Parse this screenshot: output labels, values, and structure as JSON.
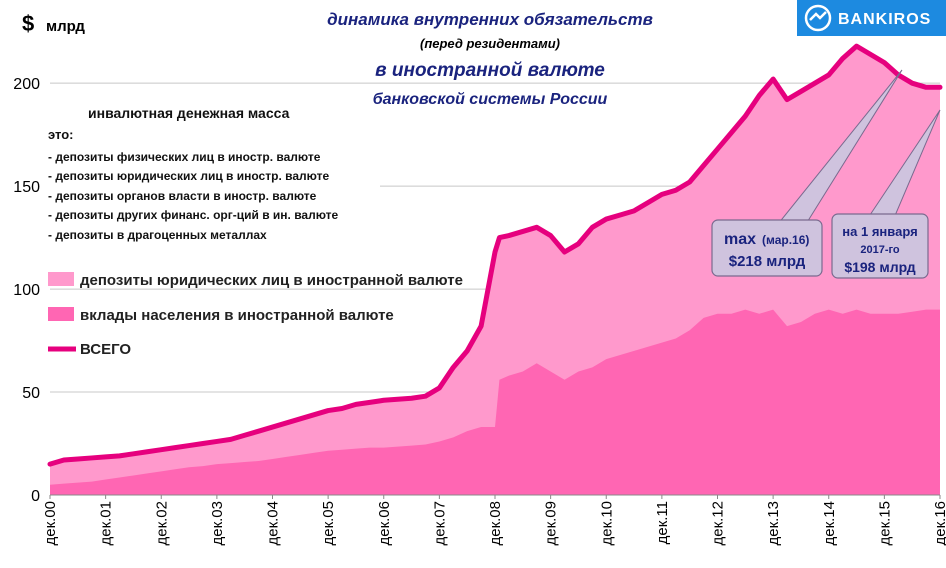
{
  "chart_data": {
    "type": "area",
    "title_lines": [
      "динамика  внутренних обязательств",
      "(перед резидентами)",
      "в иностранной валюте",
      "банковской системы России"
    ],
    "unit_label": "млрд",
    "currency_symbol": "$",
    "note_header": "инвалютная денежная масса",
    "note_intro": "это:",
    "note_items": [
      "- депозиты физических лиц в иностр. валюте",
      "- депозиты юридических лиц в иностр. валюте",
      "- депозиты органов власти в иностр. валюте",
      "- депозиты других финанс. орг-ций в ин. валюте",
      "- депозиты в драгоценных металлах"
    ],
    "x_ticks": [
      "дек.00",
      "дек.01",
      "дек.02",
      "дек.03",
      "дек.04",
      "дек.05",
      "дек.06",
      "дек.07",
      "дек.08",
      "дек.09",
      "дек.10",
      "дек.11",
      "дек.12",
      "дек.13",
      "дек.14",
      "дек.15",
      "дек.16"
    ],
    "ylim": [
      0,
      220
    ],
    "y_ticks": [
      0,
      50,
      100,
      150,
      200
    ],
    "grid": true,
    "legend_placement": "left",
    "x_dec_years": [
      2000,
      2000.25,
      2000.5,
      2000.75,
      2001,
      2001.25,
      2001.5,
      2001.75,
      2002,
      2002.25,
      2002.5,
      2002.75,
      2003,
      2003.25,
      2003.5,
      2003.75,
      2004,
      2004.25,
      2004.5,
      2004.75,
      2005,
      2005.25,
      2005.5,
      2005.75,
      2006,
      2006.25,
      2006.5,
      2006.75,
      2007,
      2007.25,
      2007.5,
      2007.75,
      2008,
      2008.08,
      2008.25,
      2008.5,
      2008.75,
      2009,
      2009.25,
      2009.5,
      2009.75,
      2010,
      2010.25,
      2010.5,
      2010.75,
      2011,
      2011.25,
      2011.5,
      2011.75,
      2012,
      2012.25,
      2012.5,
      2012.75,
      2013,
      2013.25,
      2013.5,
      2013.75,
      2014,
      2014.25,
      2014.5,
      2014.75,
      2015,
      2015.25,
      2015.5,
      2015.75,
      2016
    ],
    "series": [
      {
        "name": "вклады населения в иностранной валюте",
        "color": "#ff66b3",
        "values": [
          5,
          5.5,
          6,
          6.5,
          7.5,
          8.5,
          9.5,
          10.5,
          11.5,
          12.5,
          13.5,
          14,
          15,
          15.5,
          16,
          16.5,
          17.5,
          18.5,
          19.5,
          20.5,
          21.5,
          22,
          22.5,
          23,
          23,
          23.5,
          24,
          24.5,
          26,
          28,
          31,
          33,
          33,
          56,
          58,
          60,
          64,
          60,
          56,
          60,
          62,
          66,
          68,
          70,
          72,
          74,
          76,
          80,
          86,
          88,
          88,
          90,
          88,
          90,
          82,
          84,
          88,
          90,
          88,
          90,
          88,
          88,
          88,
          89,
          90,
          90
        ]
      },
      {
        "name": "депозиты юридических лиц в иностранной валюте",
        "color": "#ff99cc",
        "values": [
          15,
          17,
          17.5,
          18,
          18.5,
          19,
          20,
          21,
          22,
          23,
          24,
          25,
          26,
          27,
          29,
          31,
          33,
          35,
          37,
          39,
          41,
          42,
          44,
          45,
          46,
          46.5,
          47,
          48,
          52,
          62,
          70,
          82,
          118,
          125,
          126,
          128,
          130,
          126,
          118,
          122,
          130,
          134,
          136,
          138,
          142,
          146,
          148,
          152,
          160,
          168,
          176,
          184,
          194,
          202,
          192,
          196,
          200,
          204,
          212,
          218,
          214,
          210,
          204,
          200,
          198,
          198
        ]
      }
    ],
    "total_series": {
      "name": "ВСЕГО",
      "color": "#e6007e"
    },
    "callouts": [
      {
        "line1": "max",
        "line1_small": "(мар.16)",
        "line2": "$218 млрд"
      },
      {
        "line1": "на 1 января",
        "line2": "2017-го",
        "line3": "$198 млрд"
      }
    ]
  },
  "brand": {
    "name": "BANKIROS"
  }
}
